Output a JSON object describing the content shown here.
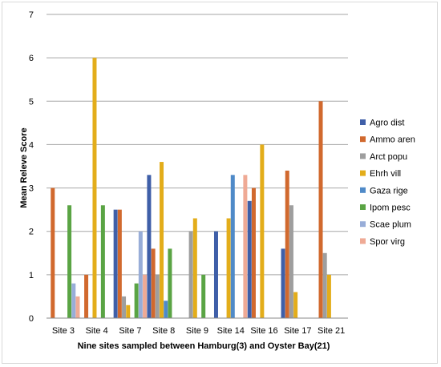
{
  "chart_data": {
    "type": "bar",
    "title": "",
    "xlabel": "Nine sites sampled between Hamburg(3) and Oyster Bay(21)",
    "ylabel": "Mean Releve  Score",
    "ylim": [
      0,
      7
    ],
    "yticks": [
      0,
      1,
      2,
      3,
      4,
      5,
      6,
      7
    ],
    "grid": true,
    "legend_position": "right",
    "categories": [
      "Site 3",
      "Site 4",
      "Site 7",
      "Site 8",
      "Site 9",
      "Site 14",
      "Site 16",
      "Site 17",
      "Site 21"
    ],
    "series": [
      {
        "name": "Agro dist",
        "color": "#3f5fa8",
        "values": [
          0,
          0,
          2.5,
          3.3,
          0,
          2.0,
          2.7,
          1.6,
          0
        ]
      },
      {
        "name": "Ammo aren",
        "color": "#d1692e",
        "values": [
          3.0,
          1.0,
          2.5,
          1.6,
          0,
          0,
          3.0,
          3.4,
          5.0
        ]
      },
      {
        "name": "Arct popu",
        "color": "#9e9e9e",
        "values": [
          0,
          0,
          0.5,
          1.0,
          2.0,
          0,
          0,
          2.6,
          1.5
        ]
      },
      {
        "name": "Ehrh vill",
        "color": "#e3ad1a",
        "values": [
          0,
          6.0,
          0.3,
          3.6,
          2.3,
          2.3,
          4.0,
          0.6,
          1.0
        ]
      },
      {
        "name": "Gaza rige",
        "color": "#4f8ac8",
        "values": [
          0,
          0,
          0,
          0.4,
          0,
          3.3,
          0,
          0,
          0
        ]
      },
      {
        "name": "Ipom pesc",
        "color": "#5aa444",
        "values": [
          2.6,
          2.6,
          0.8,
          1.6,
          1.0,
          0,
          0,
          0,
          0
        ]
      },
      {
        "name": "Scae plum",
        "color": "#98add8",
        "values": [
          0.8,
          0,
          2.0,
          0,
          0,
          0,
          0,
          0,
          0
        ]
      },
      {
        "name": "Spor virg",
        "color": "#efaa95",
        "values": [
          0.5,
          0,
          1.0,
          0,
          0,
          3.3,
          0,
          0,
          0
        ]
      }
    ]
  }
}
